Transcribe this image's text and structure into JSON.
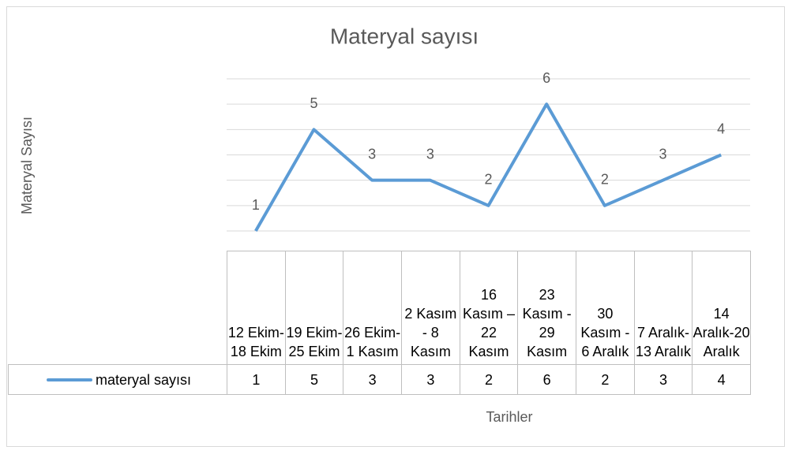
{
  "chart_data": {
    "type": "line",
    "title": "Materyal sayısı",
    "categories": [
      "12 Ekim-18 Ekim",
      "19 Ekim-25 Ekim",
      "26 Ekim-1 Kasım",
      "2 Kasım - 8 Kasım",
      "16 Kasım – 22 Kasım",
      "23 Kasım - 29 Kasım",
      "30 Kasım - 6 Aralık",
      "7 Aralık-13 Aralık",
      "14 Aralık-20 Aralık"
    ],
    "series": [
      {
        "name": "materyal sayısı",
        "color": "#5b9bd5",
        "values": [
          1,
          5,
          3,
          3,
          2,
          6,
          2,
          3,
          4
        ]
      }
    ],
    "xlabel": "Tarihler",
    "ylabel": "Materyal Sayısı",
    "ylim": [
      1,
      7
    ],
    "yticks": [
      1,
      2,
      3,
      4,
      5,
      6,
      7
    ],
    "grid": true
  }
}
